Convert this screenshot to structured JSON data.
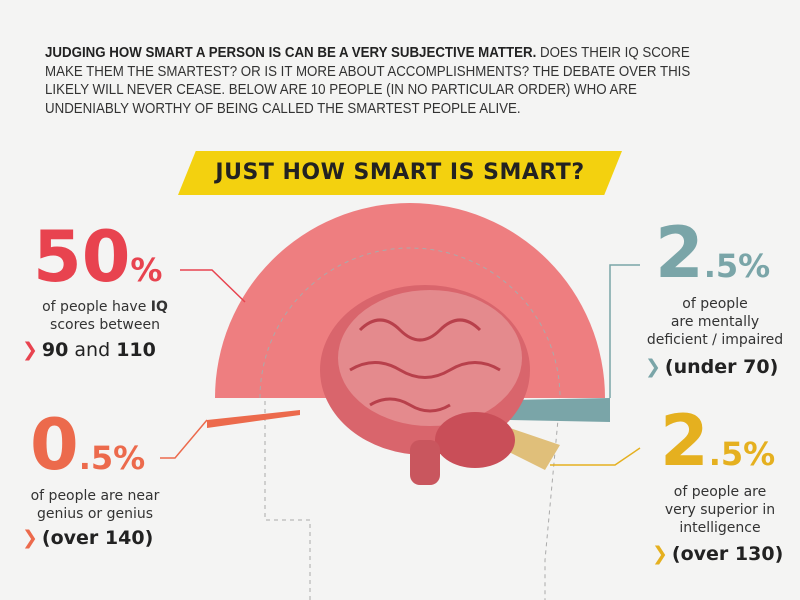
{
  "intro": {
    "lead": "JUDGING HOW SMART A PERSON IS CAN BE A VERY SUBJECTIVE MATTER.",
    "body": " DOES THEIR IQ SCORE MAKE THEM THE SMARTEST? OR IS IT MORE ABOUT ACCOMPLISHMENTS? THE DEBATE OVER THIS LIKELY WILL NEVER CEASE.  BELOW ARE 10 PEOPLE (IN NO PARTICULAR ORDER) WHO ARE UNDENIABLY WORTHY OF BEING CALLED THE SMARTEST PEOPLE ALIVE."
  },
  "banner": {
    "title": "JUST HOW SMART IS SMART?"
  },
  "colors": {
    "red": "#e8434f",
    "orange": "#ec6a4c",
    "teal": "#7aa5a8",
    "yellow": "#e5b01f",
    "pink": "#ee7e80",
    "banner": "#f3d10f"
  },
  "stats": [
    {
      "number": "50",
      "unit": "%",
      "line1": "of people have ",
      "line1_bold": "IQ",
      "line2": "scores between",
      "range_a": "90",
      "range_mid": " and ",
      "range_b": "110",
      "share_percent": 50
    },
    {
      "number": "0",
      "unit": ".5%",
      "line1": "of people are near",
      "line2": "genius or genius",
      "range": "(over 140)",
      "share_percent": 0.5
    },
    {
      "number": "2",
      "unit": ".5%",
      "line1": "of people",
      "line2": "are mentally",
      "line3": "deficient / impaired",
      "range": "(under 70)",
      "share_percent": 2.5
    },
    {
      "number": "2",
      "unit": ".5%",
      "line1": "of people are",
      "line2": "very superior in",
      "line3": "intelligence",
      "range": "(over 130)",
      "share_percent": 2.5
    }
  ],
  "icons": {
    "chevron": "chevron-right-icon",
    "brain": "brain-illustration"
  }
}
